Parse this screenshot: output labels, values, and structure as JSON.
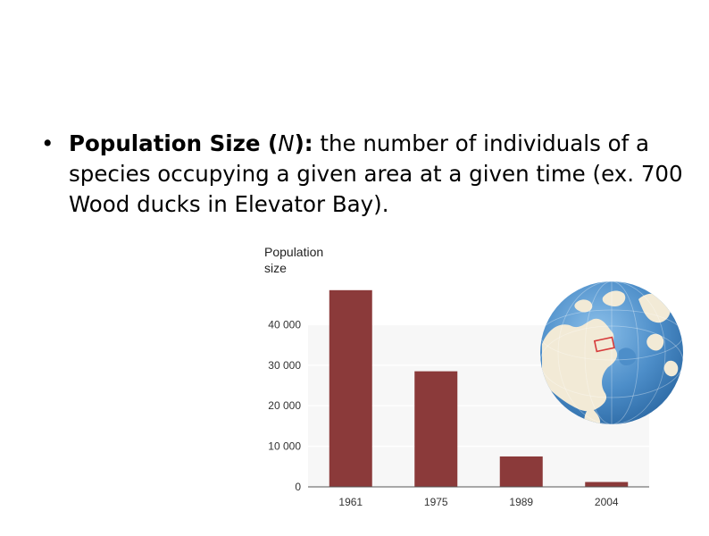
{
  "slide": {
    "bullet": {
      "symbol": "•",
      "term": "Population Size",
      "open_paren": " (",
      "variable": "N",
      "close_colon": "):",
      "definition": " the number of individuals of a species occupying a given area at a given time (ex. 700 Wood ducks in Elevator Bay)."
    }
  },
  "chart_data": {
    "type": "bar",
    "title": "",
    "xlabel": "",
    "ylabel": [
      "Population",
      "size"
    ],
    "categories": [
      "1961",
      "1975",
      "1989",
      "2004"
    ],
    "values": [
      48500,
      28500,
      7500,
      1200
    ],
    "ylim": [
      0,
      50000
    ],
    "yticks": [
      0,
      10000,
      20000,
      30000,
      40000
    ],
    "ytick_labels": [
      "0",
      "10 000",
      "20 000",
      "30 000",
      "40 000"
    ],
    "grid": true,
    "bar_color": "#8b3a3a",
    "band_color": "#e6e6e6"
  },
  "globe": {
    "icon": "globe-north-america-icon",
    "ocean_color": "#4d8ec9",
    "land_color": "#f2ead6",
    "marker_color": "#d63b3b"
  }
}
